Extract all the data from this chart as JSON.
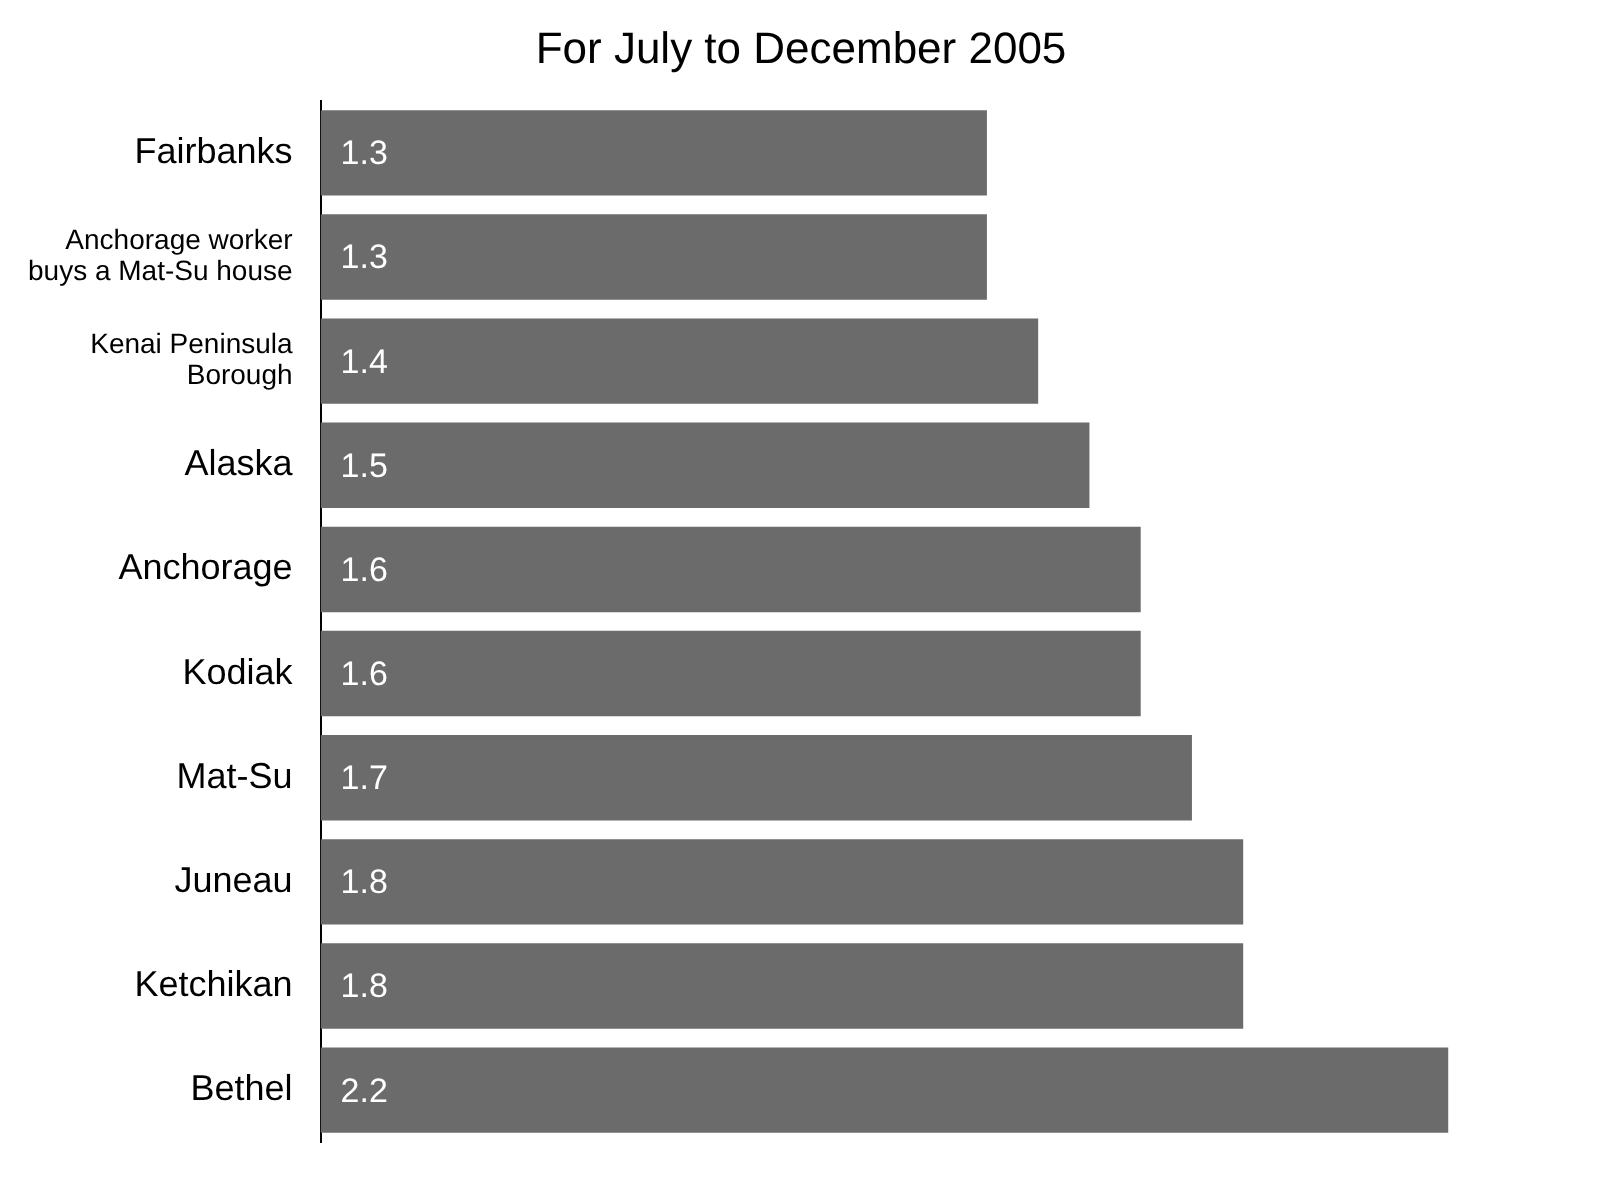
{
  "chart_data": {
    "type": "bar",
    "orientation": "horizontal",
    "title": "For July to December 2005",
    "categories": [
      "Fairbanks",
      "Anchorage worker buys a Mat-Su house",
      "Kenai Peninsula Borough",
      "Alaska",
      "Anchorage",
      "Kodiak",
      "Mat-Su",
      "Juneau",
      "Ketchikan",
      "Bethel"
    ],
    "values": [
      1.3,
      1.3,
      1.4,
      1.5,
      1.6,
      1.6,
      1.7,
      1.8,
      1.8,
      2.2
    ],
    "color": "#6b6b6b",
    "data_labels": true,
    "tick_labels": "y",
    "grid": false,
    "legend": false
  }
}
